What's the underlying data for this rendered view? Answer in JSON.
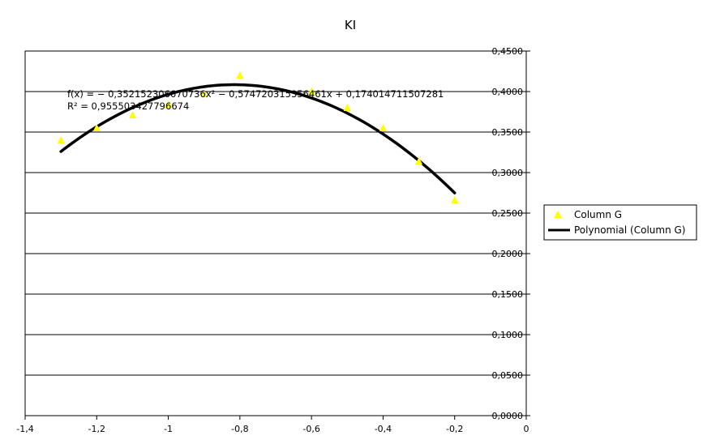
{
  "chart_data": {
    "type": "scatter",
    "title": "KI",
    "xlabel": "",
    "ylabel": "",
    "xlim": [
      -1.4,
      0
    ],
    "ylim": [
      0,
      0.45
    ],
    "grid": "horizontal",
    "legend_position": "right",
    "x_ticks": [
      "-1,4",
      "-1,2",
      "-1",
      "-0,8",
      "-0,6",
      "-0,4",
      "-0,2",
      "0"
    ],
    "y_ticks": [
      "0,0000",
      "0,0500",
      "0,1000",
      "0,1500",
      "0,2000",
      "0,2500",
      "0,3000",
      "0,3500",
      "0,4000",
      "0,4500"
    ],
    "series": [
      {
        "name": "Column G",
        "marker": "triangle",
        "color": "#ffff00",
        "x": [
          -1.3,
          -1.2,
          -1.1,
          -1.0,
          -0.9,
          -0.8,
          -0.6,
          -0.5,
          -0.4,
          -0.3,
          -0.2
        ],
        "y": [
          0.34,
          0.355,
          0.371,
          0.384,
          0.397,
          0.42,
          0.4,
          0.38,
          0.355,
          0.314,
          0.266
        ]
      }
    ],
    "trendline": {
      "name": "Polynomial (Column G)",
      "color": "#000000",
      "coefficients": {
        "a": -0.352152306670736,
        "b": -0.574720315356461,
        "c": 0.174014711507281
      },
      "x_range": [
        -1.3,
        -0.2
      ],
      "equation": "f(x) = − 0,352152306670736x² − 0,574720315356461x + 0,174014711507281",
      "r_squared": "R² = 0,955503427796674"
    }
  }
}
